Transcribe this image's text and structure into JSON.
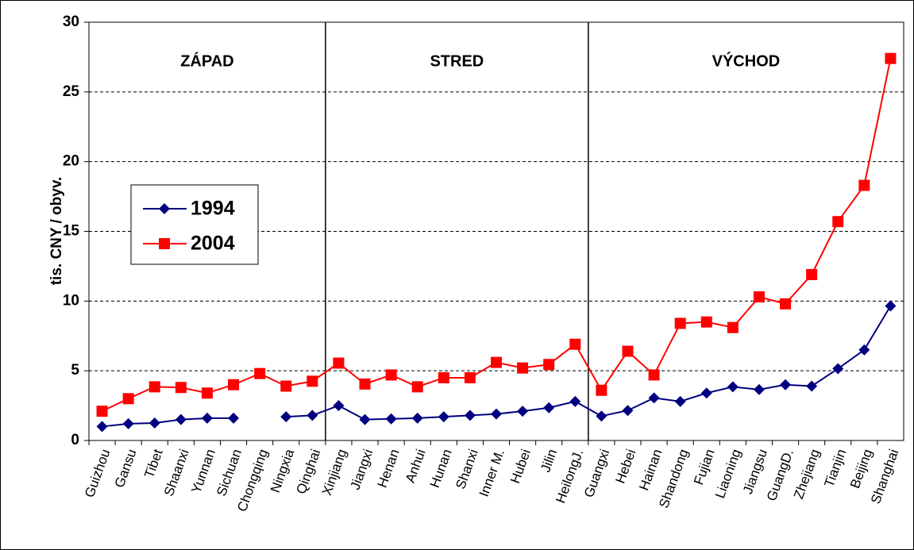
{
  "chart_data": {
    "type": "line",
    "y_label": "tis. CNY / obyv.",
    "categories": [
      "Guizhou",
      "Gansu",
      "Tibet",
      "Shaanxi",
      "Yunnan",
      "Sichuan",
      "Chongqing",
      "Ningxia",
      "Qinghai",
      "Xinjiang",
      "Jiangxi",
      "Henan",
      "Anhui",
      "Hunan",
      "Shanxi",
      "Inner M.",
      "Hubei",
      "Jilin",
      "HeilongJ.",
      "Guangxi",
      "Hebei",
      "Hainan",
      "Shandong",
      "Fujian",
      "Liaoning",
      "Jiangsu",
      "GuangD.",
      "Zhejiang",
      "Tianjin",
      "Beijing",
      "Shanghai"
    ],
    "series": [
      {
        "name": "1994",
        "color": "#000080",
        "marker": "diamond",
        "values": [
          1.0,
          1.2,
          1.25,
          1.5,
          1.6,
          1.6,
          null,
          1.7,
          1.8,
          2.5,
          1.5,
          1.55,
          1.6,
          1.7,
          1.8,
          1.9,
          2.1,
          2.35,
          2.8,
          1.75,
          2.15,
          3.05,
          2.8,
          3.4,
          3.85,
          3.65,
          4.0,
          3.9,
          5.15,
          6.5,
          9.65
        ]
      },
      {
        "name": "2004",
        "color": "#ff0000",
        "marker": "square",
        "values": [
          2.1,
          3.0,
          3.85,
          3.8,
          3.4,
          4.0,
          4.8,
          3.9,
          4.25,
          5.55,
          4.05,
          4.7,
          3.85,
          4.5,
          4.5,
          5.6,
          5.2,
          5.45,
          6.9,
          3.6,
          6.4,
          4.7,
          8.4,
          8.5,
          8.1,
          10.3,
          9.8,
          11.9,
          15.7,
          18.3,
          27.4
        ]
      }
    ],
    "regions": [
      {
        "label": "ZÁPAD",
        "from": "Guizhou",
        "to": "Qinghai"
      },
      {
        "label": "STRED",
        "from": "Xinjiang",
        "to": "HeilongJ."
      },
      {
        "label": "VÝCHOD",
        "from": "Guangxi",
        "to": "Shanghai"
      }
    ],
    "ylim": [
      0,
      30
    ],
    "yticks": [
      0,
      5,
      10,
      15,
      20,
      25,
      30
    ],
    "grid": true,
    "legend": "left"
  }
}
